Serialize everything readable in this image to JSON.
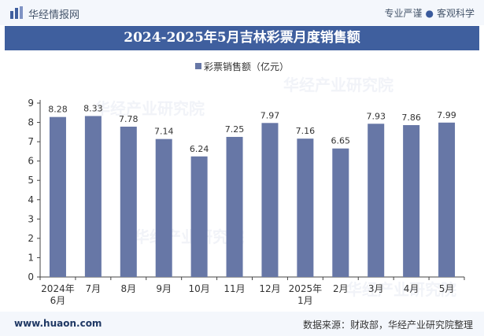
{
  "header": {
    "brand": "华经情报网",
    "tagline_left": "专业严谨",
    "tagline_right": "客观科学",
    "logo_icon": "bar-chart-logo-icon"
  },
  "title": "2024-2025年5月吉林彩票月度销售额",
  "footer": {
    "url": "www.huaon.com",
    "source": "数据来源：财政部，华经产业研究院整理"
  },
  "watermark": "华经产业研究院",
  "colors": {
    "bar": "#6777a6",
    "title_band": "#3f5f9e",
    "header_bg": "#f4f7fc"
  },
  "chart_data": {
    "type": "bar",
    "series": [
      {
        "name": "彩票销售额（亿元）",
        "values": [
          8.28,
          8.33,
          7.78,
          7.14,
          6.24,
          7.25,
          7.97,
          7.16,
          6.65,
          7.93,
          7.86,
          7.99
        ]
      }
    ],
    "categories": [
      "2024年6月",
      "7月",
      "8月",
      "9月",
      "10月",
      "11月",
      "12月",
      "2025年1月",
      "2月",
      "3月",
      "4月",
      "5月"
    ],
    "ylim": [
      0,
      9
    ],
    "yticks": [
      0,
      1,
      2,
      3,
      4,
      5,
      6,
      7,
      8,
      9
    ],
    "legend_position": "top-center",
    "grid": false
  }
}
